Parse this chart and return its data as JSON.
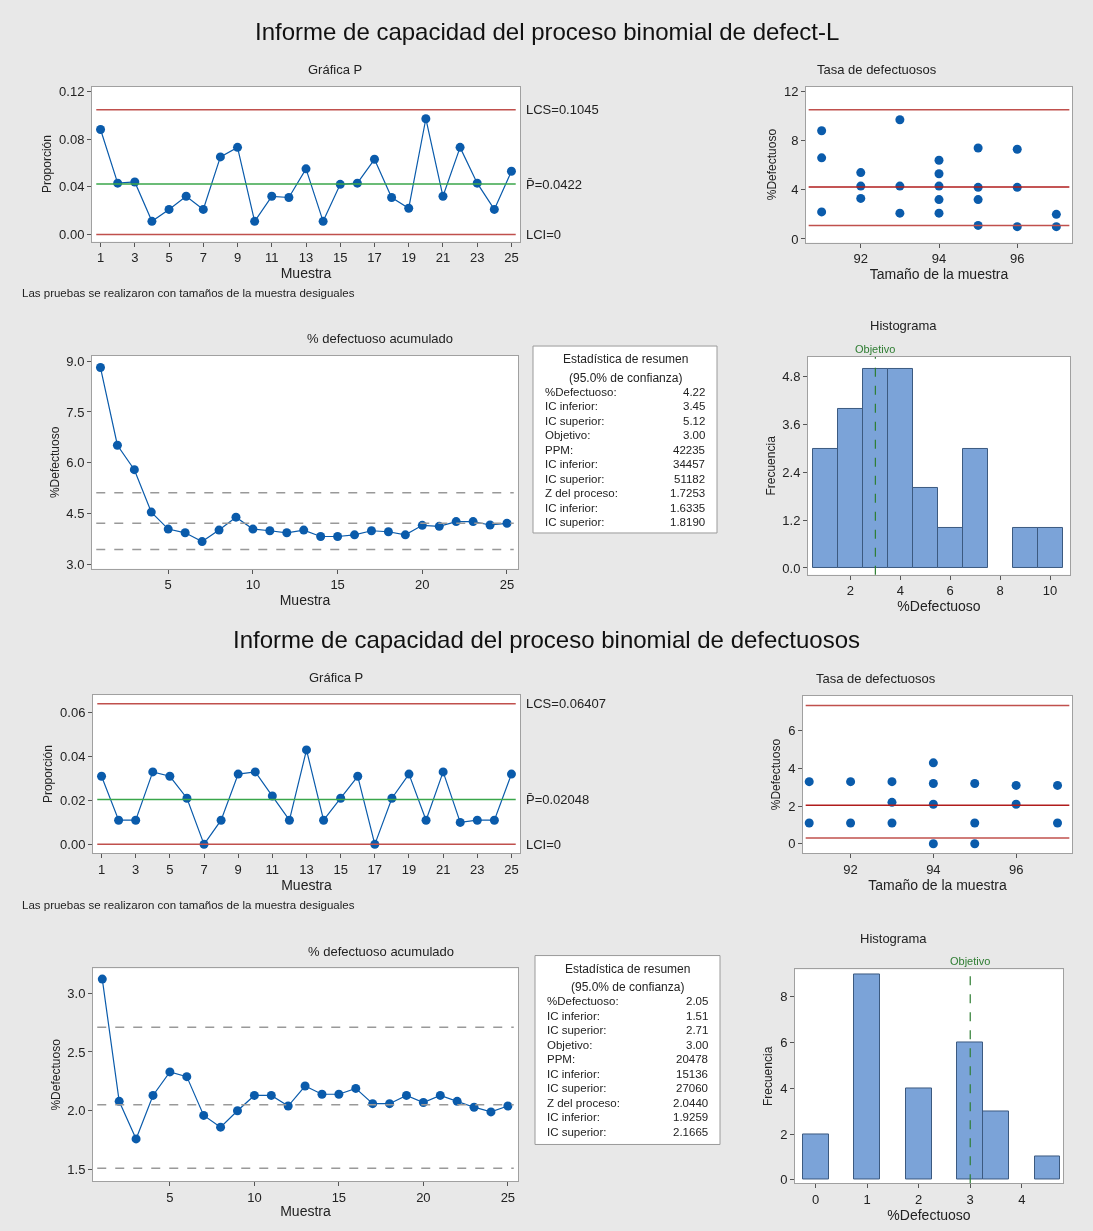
{
  "chart_data": [
    {
      "type": "line",
      "title": "Gráfica P",
      "xlabel": "Muestra",
      "ylabel": "Proporción",
      "marker": "circle",
      "annotations": [
        "Informe de capacidad del proceso binomial de defect-L",
        "Las pruebas se realizaron con tamaños de la muestra desiguales"
      ],
      "x": [
        1,
        2,
        3,
        4,
        5,
        6,
        7,
        8,
        9,
        10,
        11,
        12,
        13,
        14,
        15,
        16,
        17,
        18,
        19,
        20,
        21,
        22,
        23,
        24,
        25
      ],
      "series": [
        {
          "color": "#0a5bab",
          "values": [
            0.088,
            0.043,
            0.044,
            0.011,
            0.021,
            0.032,
            0.021,
            0.065,
            0.073,
            0.011,
            0.032,
            0.031,
            0.055,
            0.011,
            0.042,
            0.043,
            0.063,
            0.031,
            0.022,
            0.097,
            0.032,
            0.073,
            0.043,
            0.021,
            0.053
          ]
        }
      ],
      "xlim": [
        0.5,
        25.5
      ],
      "xticks": [
        1,
        3,
        5,
        7,
        9,
        11,
        13,
        15,
        17,
        19,
        21,
        23,
        25
      ],
      "ylim": [
        -0.006,
        0.124
      ],
      "yticks": [
        {
          "value": 0,
          "label": "0.00"
        },
        0.04,
        0.08,
        0.12
      ],
      "ref_lines": [
        {
          "axis": "y",
          "value": 0.1045,
          "label": "LCS=0.1045",
          "color": "#c0504d"
        },
        {
          "axis": "y",
          "value": 0.0422,
          "label": "P̄=0.0422",
          "color": "#3aa64a"
        },
        {
          "axis": "y",
          "value": 0,
          "label": "LCI=0",
          "color": "#c0504d"
        }
      ]
    },
    {
      "type": "scatter",
      "title": "Tasa de defectuosos",
      "xlabel": "Tamaño de la muestra",
      "ylabel": "%Defectuoso",
      "marker": "circle",
      "series": [
        {
          "color": "#0a5bab",
          "x": [
            91,
            91,
            91,
            92,
            92,
            92,
            93,
            93,
            93,
            94,
            94,
            94,
            94,
            94,
            95,
            95,
            95,
            95,
            96,
            96,
            96,
            97,
            97
          ],
          "values": [
            8.8,
            6.6,
            2.2,
            5.4,
            4.3,
            3.3,
            9.7,
            4.3,
            2.1,
            6.4,
            5.3,
            4.3,
            3.2,
            2.1,
            7.4,
            4.2,
            3.2,
            1.1,
            7.3,
            4.2,
            1.0,
            2.0,
            1.0
          ]
        }
      ],
      "xlim": [
        90.6,
        97.4
      ],
      "xticks": [
        92,
        94,
        96
      ],
      "ylim": [
        -0.3,
        12.4
      ],
      "yticks": [
        0,
        4,
        8,
        12
      ],
      "ref_lines": [
        {
          "axis": "y",
          "value": 10.5,
          "color": "#c0504d"
        },
        {
          "axis": "y",
          "value": 4.22,
          "color": "#b01c1c"
        },
        {
          "axis": "y",
          "value": 1.1,
          "color": "#c0504d"
        }
      ]
    },
    {
      "type": "line",
      "title": "% defectuoso acumulado",
      "xlabel": "Muestra",
      "ylabel": "%Defectuoso",
      "marker": "circle",
      "x": [
        1,
        2,
        3,
        4,
        5,
        6,
        7,
        8,
        9,
        10,
        11,
        12,
        13,
        14,
        15,
        16,
        17,
        18,
        19,
        20,
        21,
        22,
        23,
        24,
        25
      ],
      "series": [
        {
          "color": "#0a5bab",
          "values": [
            8.81,
            6.52,
            5.8,
            4.55,
            4.05,
            3.94,
            3.68,
            4.02,
            4.4,
            4.05,
            4.0,
            3.94,
            4.02,
            3.83,
            3.83,
            3.88,
            4.0,
            3.97,
            3.88,
            4.16,
            4.13,
            4.27,
            4.27,
            4.17,
            4.22
          ]
        }
      ],
      "xlim": [
        0.5,
        25.65
      ],
      "xticks": [
        5,
        10,
        15,
        20,
        25
      ],
      "ylim": [
        2.88,
        9.15
      ],
      "yticks": [
        {
          "value": 3,
          "label": "3.0"
        },
        4.5,
        {
          "value": 6,
          "label": "6.0"
        },
        7.5,
        {
          "value": 9,
          "label": "9.0"
        }
      ],
      "ref_lines": [
        {
          "axis": "y",
          "value": 5.12,
          "color": "#999999",
          "line_style": "dashed"
        },
        {
          "axis": "y",
          "value": 4.22,
          "color": "#999999",
          "line_style": "dashed"
        },
        {
          "axis": "y",
          "value": 3.45,
          "color": "#999999",
          "line_style": "dashed"
        }
      ]
    },
    {
      "type": "other",
      "title": "Estadística de resumen",
      "subtitle": "(95.0% de confianza)",
      "annotations": [
        "%Defectuoso:",
        "4.22",
        "IC inferior:",
        "3.45",
        "IC superior:",
        "5.12",
        "Objetivo:",
        "3.00",
        "PPM:",
        "42235",
        "IC inferior:",
        "34457",
        "IC superior:",
        "51182",
        "Z del proceso:",
        "1.7253",
        "IC inferior:",
        "1.6335",
        "IC superior:",
        "1.8190"
      ]
    },
    {
      "type": "histogram",
      "title": "Histograma",
      "xlabel": "%Defectuoso",
      "ylabel": "Frecuencia",
      "color": "#7ba3d8",
      "bins": [
        0.5,
        1.5,
        2.5,
        3.5,
        4.5,
        5.5,
        6.5,
        7.5,
        8.5,
        9.5,
        10.5
      ],
      "values": [
        3,
        4,
        5,
        5,
        2,
        1,
        3,
        0,
        1,
        1
      ],
      "xlim": [
        0.3,
        10.8
      ],
      "xticks": [
        2,
        4,
        6,
        8,
        10
      ],
      "ylim": [
        -0.17,
        5.3
      ],
      "yticks": [
        {
          "value": 0,
          "label": "0.0"
        },
        1.2,
        2.4,
        3.6,
        4.8
      ],
      "ref_lines": [
        {
          "axis": "x",
          "value": 3.0,
          "label": "Objetivo",
          "color": "#2e7d32",
          "line_style": "dashed"
        }
      ]
    },
    {
      "type": "line",
      "title": "Gráfica P",
      "xlabel": "Muestra",
      "ylabel": "Proporción",
      "marker": "circle",
      "annotations": [
        "Informe de capacidad del proceso binomial de defectuosos",
        "Las pruebas se realizaron con tamaños de la muestra desiguales"
      ],
      "x": [
        1,
        2,
        3,
        4,
        5,
        6,
        7,
        8,
        9,
        10,
        11,
        12,
        13,
        14,
        15,
        16,
        17,
        18,
        19,
        20,
        21,
        22,
        23,
        24,
        25
      ],
      "series": [
        {
          "color": "#0a5bab",
          "values": [
            0.031,
            0.011,
            0.011,
            0.033,
            0.031,
            0.021,
            0.0,
            0.011,
            0.032,
            0.033,
            0.022,
            0.011,
            0.043,
            0.011,
            0.021,
            0.031,
            0.0,
            0.021,
            0.032,
            0.011,
            0.033,
            0.01,
            0.011,
            0.011,
            0.032
          ]
        }
      ],
      "xlim": [
        0.5,
        25.5
      ],
      "xticks": [
        1,
        3,
        5,
        7,
        9,
        11,
        13,
        15,
        17,
        19,
        21,
        23,
        25
      ],
      "ylim": [
        -0.004,
        0.068
      ],
      "yticks": [
        {
          "value": 0,
          "label": "0.00"
        },
        0.02,
        0.04,
        0.06
      ],
      "ref_lines": [
        {
          "axis": "y",
          "value": 0.06407,
          "label": "LCS=0.06407",
          "color": "#c0504d"
        },
        {
          "axis": "y",
          "value": 0.02048,
          "label": "P̄=0.02048",
          "color": "#3aa64a"
        },
        {
          "axis": "y",
          "value": 0,
          "label": "LCI=0",
          "color": "#c0504d"
        }
      ]
    },
    {
      "type": "scatter",
      "title": "Tasa de defectuosos",
      "xlabel": "Tamaño de la muestra",
      "ylabel": "%Defectuoso",
      "marker": "circle",
      "series": [
        {
          "color": "#0a5bab",
          "x": [
            91,
            91,
            92,
            92,
            93,
            93,
            93,
            94,
            94,
            94,
            94,
            95,
            95,
            95,
            96,
            96,
            97,
            97
          ],
          "values": [
            3.3,
            1.1,
            3.3,
            1.1,
            3.3,
            2.2,
            1.1,
            4.3,
            3.2,
            2.1,
            0.0,
            3.2,
            1.1,
            0.0,
            3.1,
            2.1,
            3.1,
            1.1
          ]
        }
      ],
      "xlim": [
        90.85,
        97.35
      ],
      "xticks": [
        92,
        94,
        96
      ],
      "ylim": [
        -0.5,
        7.85
      ],
      "yticks": [
        0,
        2,
        4,
        6
      ],
      "ref_lines": [
        {
          "axis": "y",
          "value": 7.35,
          "color": "#c0504d"
        },
        {
          "axis": "y",
          "value": 2.05,
          "color": "#b01c1c"
        },
        {
          "axis": "y",
          "value": 0.3,
          "color": "#c0504d"
        }
      ]
    },
    {
      "type": "line",
      "title": "% defectuoso acumulado",
      "xlabel": "Muestra",
      "ylabel": "%Defectuoso",
      "marker": "circle",
      "x": [
        1,
        2,
        3,
        4,
        5,
        6,
        7,
        8,
        9,
        10,
        11,
        12,
        13,
        14,
        15,
        16,
        17,
        18,
        19,
        20,
        21,
        22,
        23,
        24,
        25
      ],
      "series": [
        {
          "color": "#0a5bab",
          "values": [
            3.12,
            2.08,
            1.76,
            2.13,
            2.33,
            2.29,
            1.96,
            1.86,
            2.0,
            2.13,
            2.13,
            2.04,
            2.21,
            2.14,
            2.14,
            2.19,
            2.06,
            2.06,
            2.13,
            2.07,
            2.13,
            2.08,
            2.03,
            1.99,
            2.04
          ]
        }
      ],
      "xlim": [
        0.45,
        25.6
      ],
      "xticks": [
        5,
        10,
        15,
        20,
        25
      ],
      "ylim": [
        1.4,
        3.21
      ],
      "yticks": [
        1.5,
        {
          "value": 2,
          "label": "2.0"
        },
        2.5,
        {
          "value": 3,
          "label": "3.0"
        }
      ],
      "ref_lines": [
        {
          "axis": "y",
          "value": 2.71,
          "color": "#999999",
          "line_style": "dashed"
        },
        {
          "axis": "y",
          "value": 2.05,
          "color": "#999999",
          "line_style": "dashed"
        },
        {
          "axis": "y",
          "value": 1.51,
          "color": "#999999",
          "line_style": "dashed"
        }
      ]
    },
    {
      "type": "other",
      "title": "Estadística de resumen",
      "subtitle": "(95.0% de confianza)",
      "annotations": [
        "%Defectuoso:",
        "2.05",
        "IC inferior:",
        "1.51",
        "IC superior:",
        "2.71",
        "Objetivo:",
        "3.00",
        "PPM:",
        "20478",
        "IC inferior:",
        "15136",
        "IC superior:",
        "27060",
        "Z del proceso:",
        "2.0440",
        "IC inferior:",
        "1.9259",
        "IC superior:",
        "2.1665"
      ]
    },
    {
      "type": "histogram",
      "title": "Histograma",
      "xlabel": "%Defectuoso",
      "ylabel": "Frecuencia",
      "color": "#7ba3d8",
      "bins": [
        -0.25,
        0.25,
        0.75,
        1.25,
        1.75,
        2.25,
        2.75,
        3.25,
        3.75,
        4.25,
        4.75
      ],
      "values": [
        2,
        0,
        9,
        0,
        4,
        0,
        6,
        3,
        0,
        1
      ],
      "xlim": [
        -0.4,
        4.8
      ],
      "xticks": [
        0,
        1,
        2,
        3,
        4
      ],
      "ylim": [
        -0.15,
        9.2
      ],
      "yticks": [
        0,
        2,
        4,
        6,
        8
      ],
      "ref_lines": [
        {
          "axis": "x",
          "value": 3.0,
          "label": "Objetivo",
          "color": "#2e7d32",
          "line_style": "dashed"
        }
      ]
    }
  ]
}
